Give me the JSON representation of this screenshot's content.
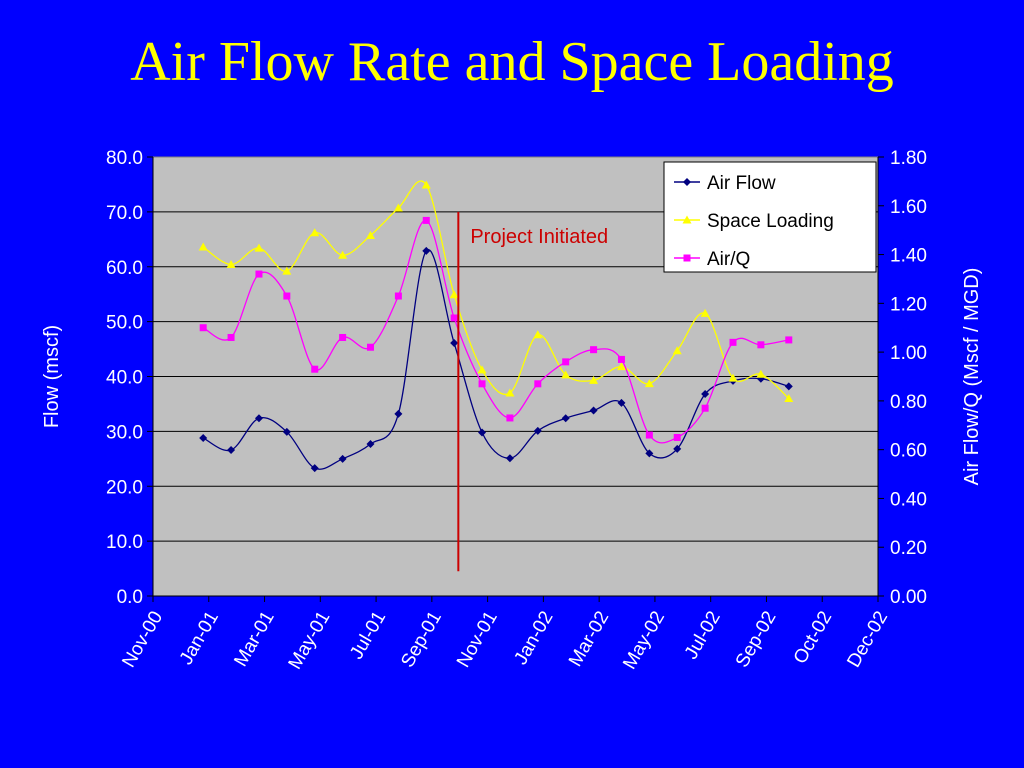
{
  "slide": {
    "title": "Air Flow Rate and Space Loading"
  },
  "colors": {
    "background": "#0000FF",
    "title": "#FFFF00",
    "plot_area": "#C0C0C0",
    "axis_text": "#FFFFFF",
    "annotation": "#CC0000"
  },
  "chart_data": {
    "type": "line",
    "title": "",
    "ylabel": "Flow (mscf)",
    "y2label": "Air Flow/Q (Mscf / MGD)",
    "ylim": [
      0,
      80
    ],
    "y2lim": [
      0,
      1.8
    ],
    "yticks": [
      "0.0",
      "10.0",
      "20.0",
      "30.0",
      "40.0",
      "50.0",
      "60.0",
      "70.0",
      "80.0"
    ],
    "y2ticks": [
      "0.00",
      "0.20",
      "0.40",
      "0.60",
      "0.80",
      "1.00",
      "1.20",
      "1.40",
      "1.60",
      "1.80"
    ],
    "xticks": [
      "Nov-00",
      "Jan-01",
      "Mar-01",
      "May-01",
      "Jul-01",
      "Sep-01",
      "Nov-01",
      "Jan-02",
      "Mar-02",
      "May-02",
      "Jul-02",
      "Sep-02",
      "Oct-02",
      "Dec-02"
    ],
    "grid": true,
    "legend_position": "top-right",
    "annotation": {
      "text": "Project Initiated",
      "x": 10.95
    },
    "series": [
      {
        "name": "Air Flow",
        "axis": "left",
        "color": "#000080",
        "marker": "diamond",
        "x": [
          1.8,
          2.8,
          3.8,
          4.8,
          5.8,
          6.8,
          7.8,
          8.8,
          9.8,
          10.8,
          11.8,
          12.8,
          13.8,
          14.8,
          15.8,
          16.8,
          17.8,
          18.8,
          19.8,
          20.8,
          21.8,
          22.8
        ],
        "values": [
          28.8,
          26.6,
          32.4,
          29.9,
          23.3,
          25.0,
          27.7,
          33.2,
          62.9,
          46.1,
          29.8,
          25.1,
          30.1,
          32.4,
          33.8,
          35.2,
          26.0,
          26.8,
          36.8,
          39.2,
          39.6,
          38.2
        ]
      },
      {
        "name": "Space Loading",
        "axis": "left",
        "color": "#FFFF00",
        "marker": "triangle",
        "x": [
          1.8,
          2.8,
          3.8,
          4.8,
          5.8,
          6.8,
          7.8,
          8.8,
          9.8,
          10.8,
          11.8,
          12.8,
          13.8,
          14.8,
          15.8,
          16.8,
          17.8,
          18.8,
          19.8,
          20.8,
          21.8,
          22.8
        ],
        "values": [
          63.6,
          60.4,
          63.4,
          59.2,
          66.2,
          62.1,
          65.7,
          70.7,
          74.9,
          54.9,
          41.2,
          37.0,
          47.6,
          40.3,
          39.3,
          41.8,
          38.7,
          44.7,
          51.5,
          39.7,
          40.4,
          36.0
        ]
      },
      {
        "name": "Air/Q",
        "axis": "right",
        "color": "#FF00FF",
        "marker": "square",
        "x": [
          1.8,
          2.8,
          3.8,
          4.8,
          5.8,
          6.8,
          7.8,
          8.8,
          9.8,
          10.8,
          11.8,
          12.8,
          13.8,
          14.8,
          15.8,
          16.8,
          17.8,
          18.8,
          19.8,
          20.8,
          21.8,
          22.8
        ],
        "values": [
          1.1,
          1.06,
          1.32,
          1.23,
          0.93,
          1.06,
          1.02,
          1.23,
          1.54,
          1.14,
          0.87,
          0.73,
          0.87,
          0.96,
          1.01,
          0.97,
          0.66,
          0.65,
          0.77,
          1.04,
          1.03,
          1.05
        ]
      }
    ]
  }
}
